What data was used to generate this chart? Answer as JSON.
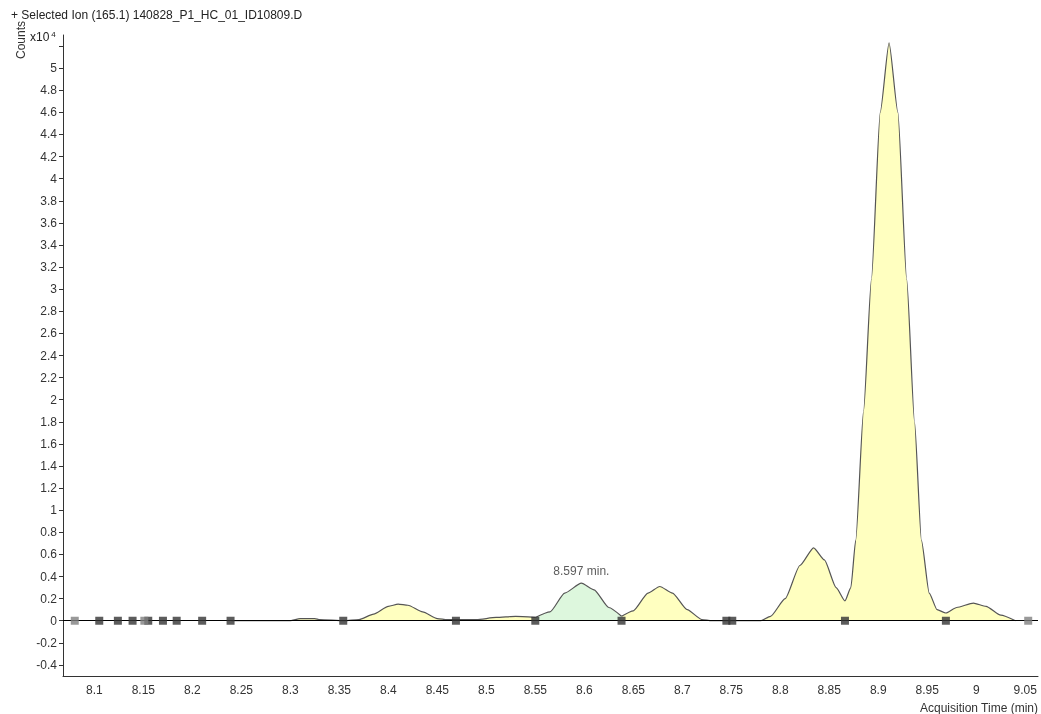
{
  "chart_data": {
    "type": "area",
    "title": "+ Selected Ion (165.1) 140828_P1_HC_01_ID10809.D",
    "xlabel": "Acquisition Time (min)",
    "ylabel": "Counts",
    "annotations": [
      "x10$^{4}$",
      {
        "text": "8.597 min.",
        "x": 8.597,
        "y": 0.34
      }
    ],
    "xlim": [
      8.068,
      9.063
    ],
    "xticks": [
      8.1,
      8.15,
      8.2,
      8.25,
      8.3,
      8.35,
      8.4,
      8.45,
      8.5,
      8.55,
      8.6,
      8.65,
      8.7,
      8.75,
      8.8,
      8.85,
      8.9,
      8.95,
      9,
      9.05
    ],
    "ylim": [
      -0.5,
      5.3
    ],
    "yticks": [
      -0.4,
      -0.2,
      0,
      0.2,
      0.4,
      0.6,
      0.8,
      1,
      1.2,
      1.4,
      1.6,
      1.8,
      2,
      2.2,
      2.4,
      2.6,
      2.8,
      3,
      3.2,
      3.4,
      3.6,
      3.8,
      4,
      4.2,
      4.4,
      4.6,
      4.8,
      5,
      {
        "value": 5.2,
        "label": null
      }
    ],
    "grid": false,
    "line_style": "solid",
    "ref_lines": [
      {
        "axis": "y",
        "value": 0,
        "color": "#000000"
      }
    ],
    "series": [
      {
        "color": "#ffffc0",
        "x": [
          8.24,
          8.3,
          8.31,
          8.325,
          8.33,
          8.355,
          8.37,
          8.385,
          8.4,
          8.41,
          8.42,
          8.435,
          8.45,
          8.46,
          8.49,
          8.51,
          8.53,
          8.55,
          8.551,
          8.638,
          8.65,
          8.665,
          8.677,
          8.69,
          8.705,
          8.72,
          8.73,
          8.78,
          8.79,
          8.805,
          8.82,
          8.834,
          8.845,
          8.857,
          8.866,
          8.872,
          8.877,
          8.885,
          8.893,
          8.902,
          8.911,
          8.92,
          8.929,
          8.937,
          8.944,
          8.952,
          8.96,
          8.969,
          8.98,
          8.997,
          9.01,
          9.025,
          9.04
        ],
        "values": [
          0,
          0,
          0.02,
          0.02,
          0.01,
          0,
          0.01,
          0.06,
          0.13,
          0.15,
          0.14,
          0.08,
          0.02,
          0.01,
          0.01,
          0.03,
          0.04,
          0.03,
          null,
          0.04,
          0.09,
          0.25,
          0.31,
          0.25,
          0.1,
          0.01,
          0,
          0,
          0.04,
          0.2,
          0.5,
          0.66,
          0.55,
          0.3,
          0.18,
          0.3,
          0.73,
          1.9,
          3.09,
          4.6,
          5.23,
          4.6,
          3.09,
          1.8,
          0.73,
          0.25,
          0.1,
          0.07,
          0.12,
          0.16,
          0.13,
          0.05,
          0
        ]
      },
      {
        "color": "#ddf7dd",
        "x": [
          8.55,
          8.565,
          8.58,
          8.597,
          8.61,
          8.625,
          8.638
        ],
        "values": [
          0.03,
          0.08,
          0.25,
          0.34,
          0.28,
          0.12,
          0.04
        ]
      },
      {
        "type": "scatter",
        "marker": "square",
        "color": "#333333",
        "x": [
          8.105,
          8.124,
          8.139,
          8.155,
          8.17,
          8.184,
          8.21,
          8.239,
          8.354,
          8.469,
          8.55,
          8.638,
          8.745,
          8.751,
          8.866,
          8.969
        ],
        "values": [
          0,
          0,
          0,
          0,
          0,
          0,
          0,
          0,
          0,
          0,
          0,
          0,
          0,
          0,
          0,
          0
        ]
      },
      {
        "type": "scatter",
        "marker": "square",
        "color": "#808080",
        "x": [
          8.08,
          8.151,
          9.053
        ],
        "values": [
          0,
          0,
          0
        ]
      }
    ]
  }
}
